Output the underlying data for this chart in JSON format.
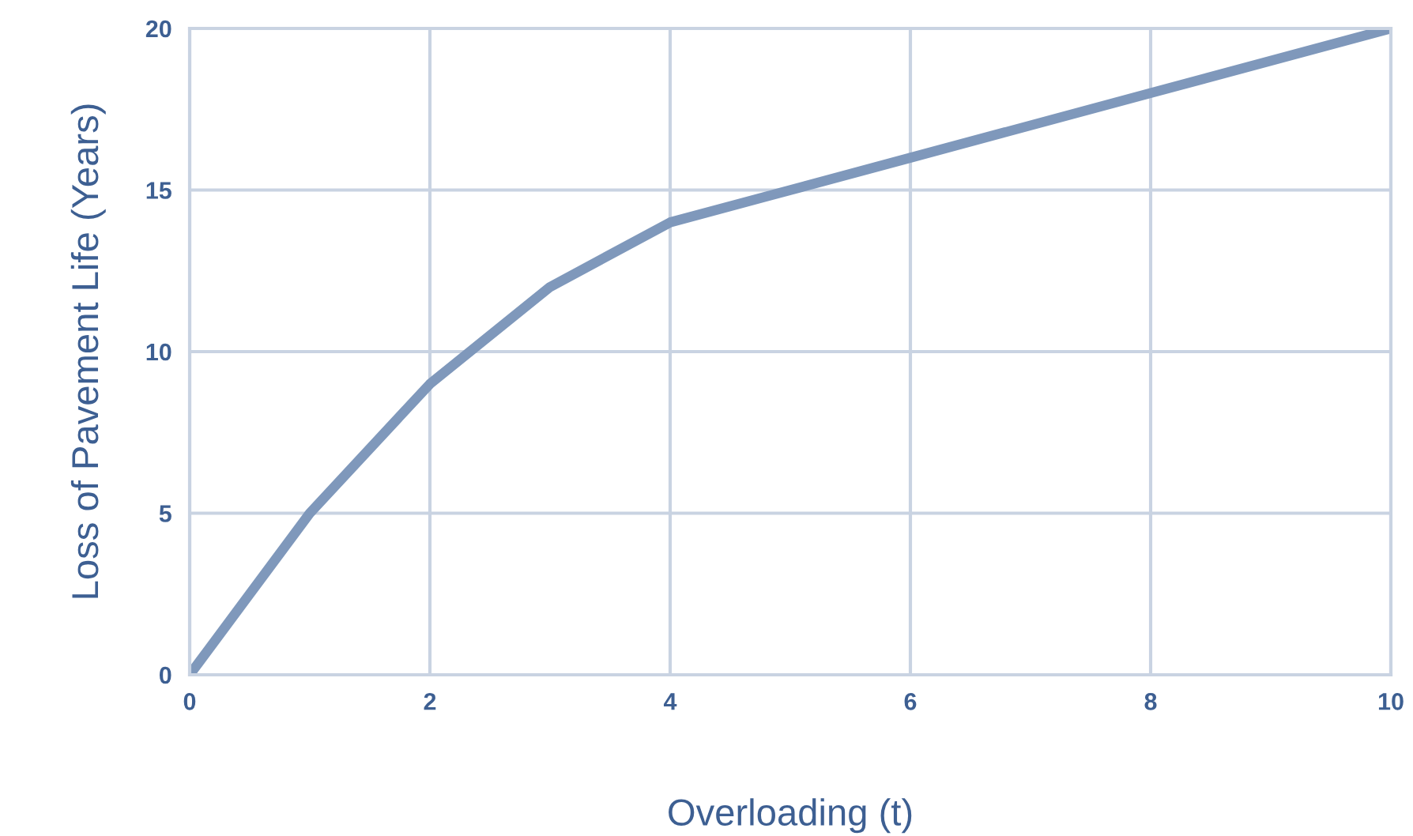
{
  "chart_data": {
    "type": "line",
    "xlabel": "Overloading (t)",
    "ylabel": "Loss of Pavement Life (Years)",
    "x": [
      0,
      1,
      2,
      3,
      4,
      6,
      8,
      10
    ],
    "series": [
      {
        "color": "#7f98bb",
        "values": [
          0,
          5,
          9,
          12,
          14,
          16,
          18,
          20
        ]
      }
    ],
    "xlim": [
      0,
      10
    ],
    "ylim": [
      0,
      20
    ],
    "xticks": [
      0,
      2,
      4,
      6,
      8,
      10
    ],
    "yticks": [
      0,
      5,
      10,
      15,
      20
    ],
    "grid": true,
    "marker": "none",
    "line_style": "solid"
  }
}
